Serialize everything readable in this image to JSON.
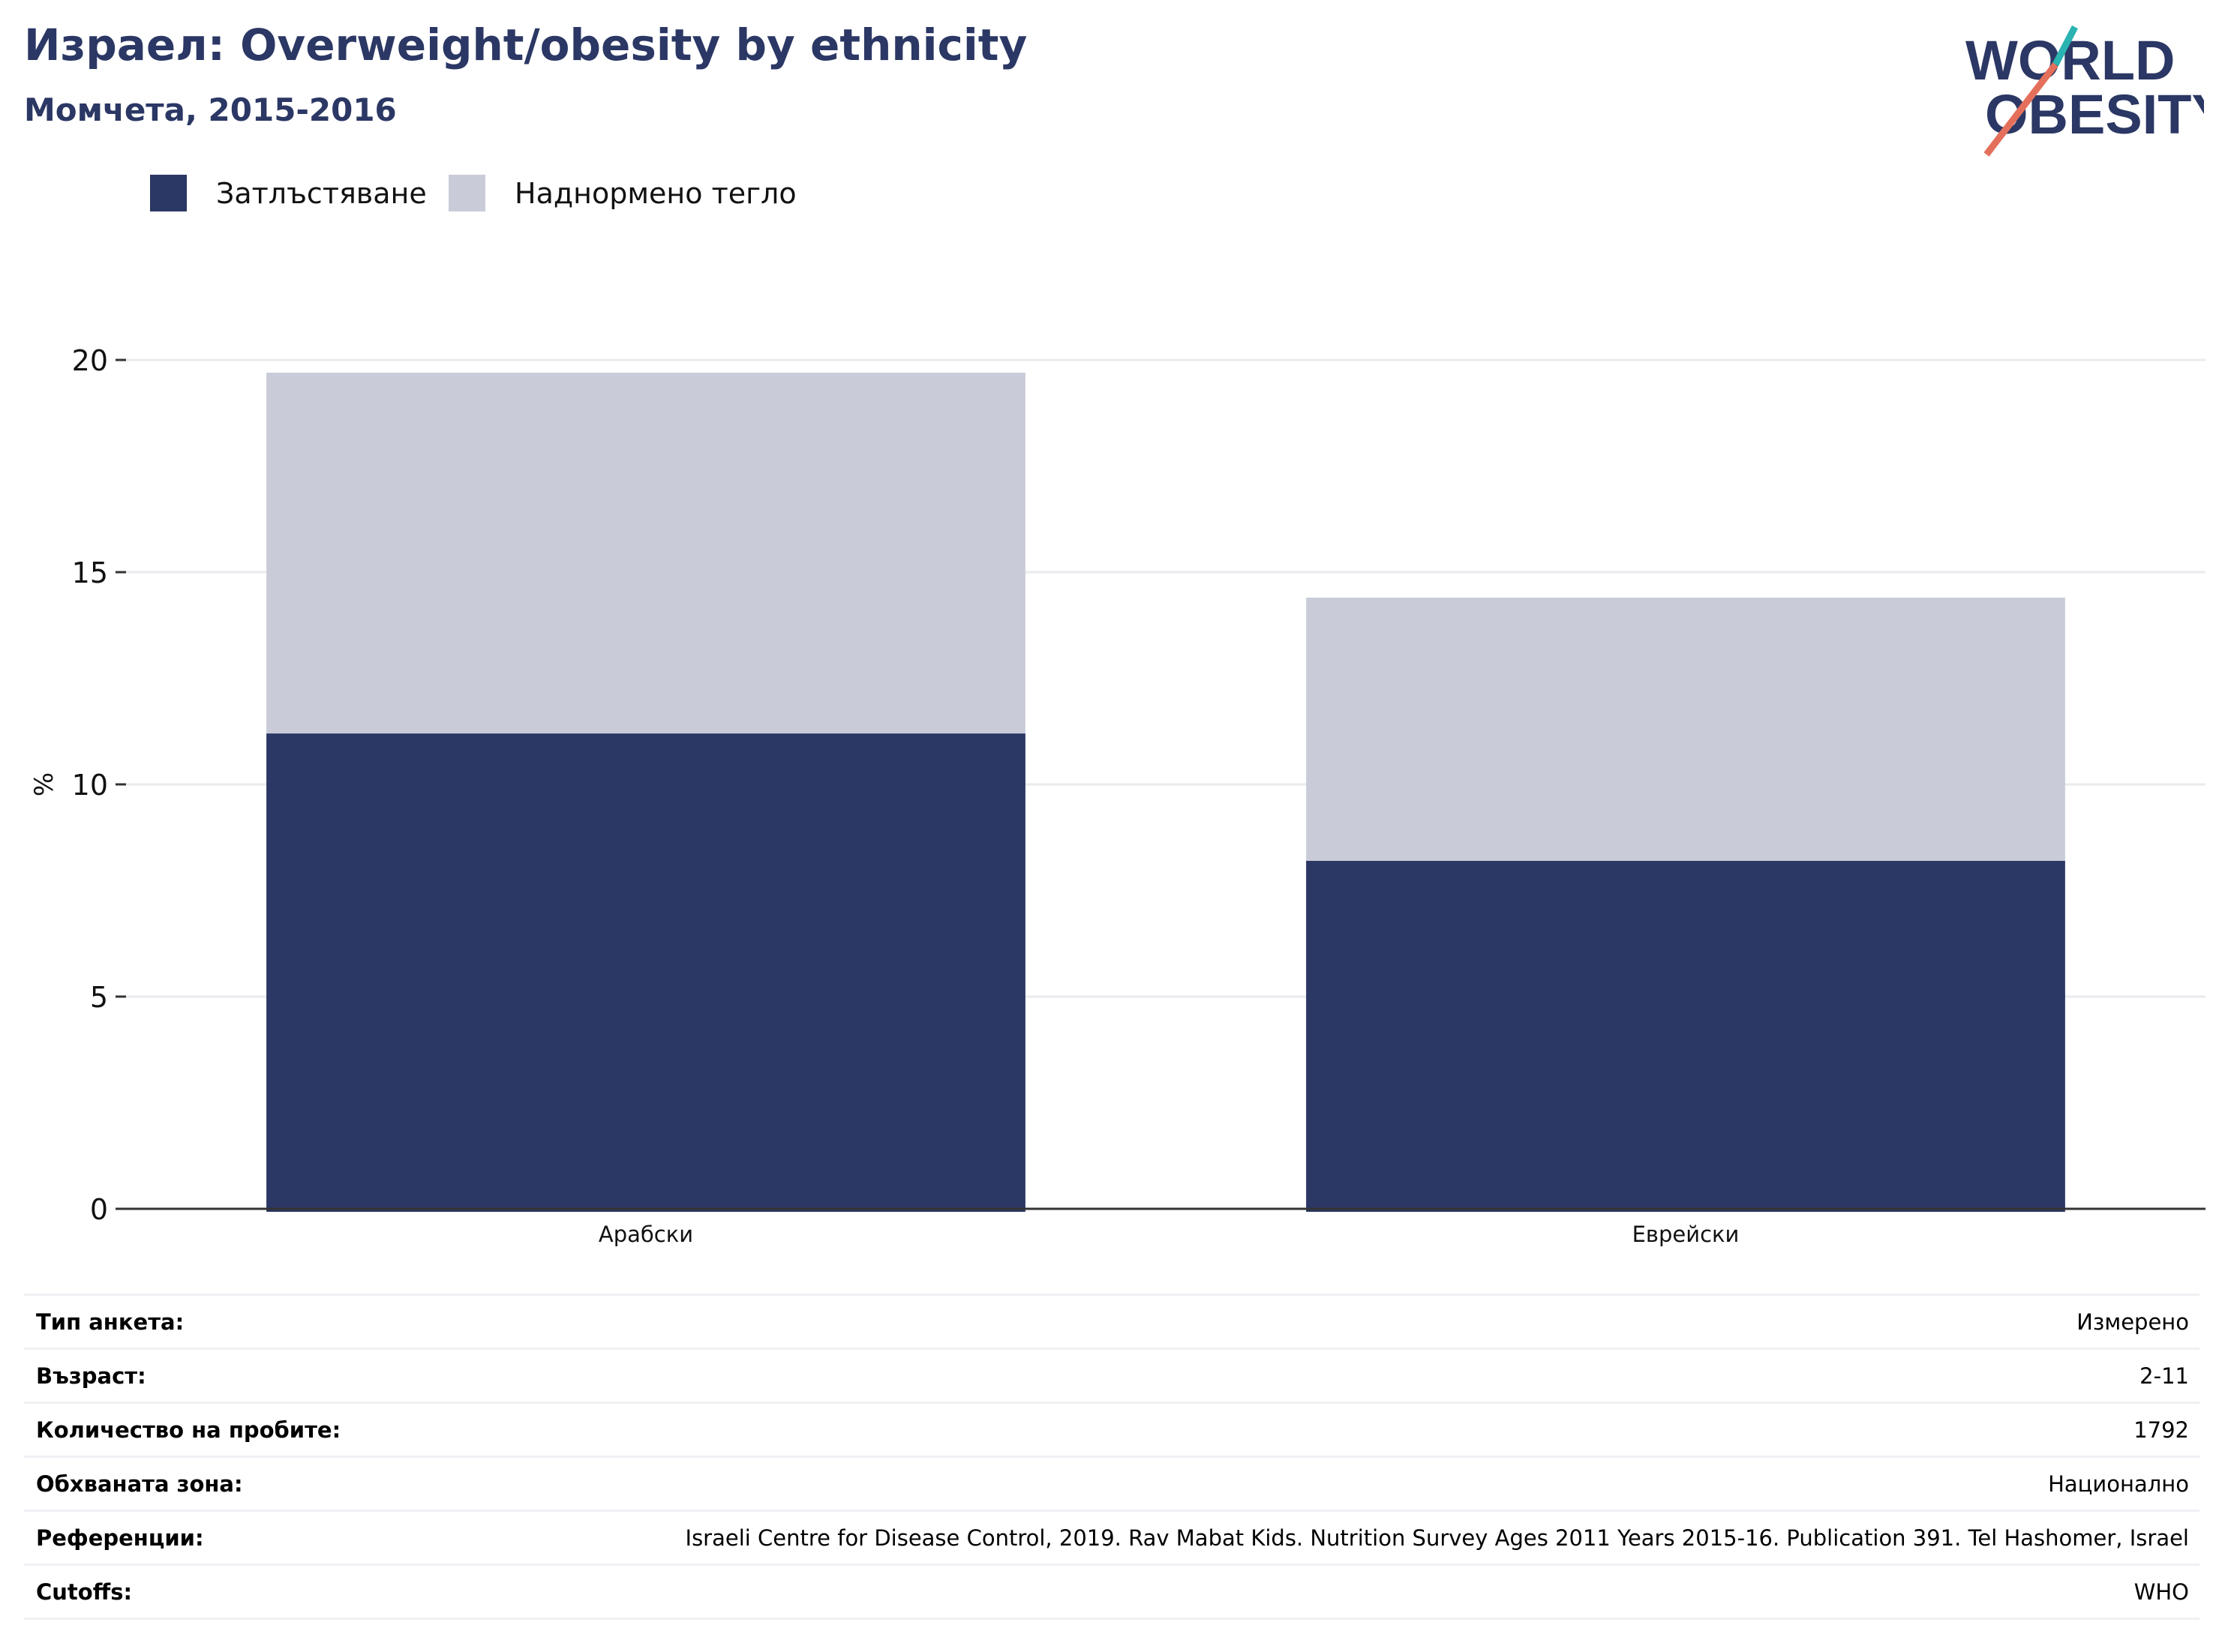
{
  "header": {
    "title": "Израел: Overweight/obesity by ethnicity",
    "subtitle": "Момчета, 2015-2016"
  },
  "logo": {
    "line1": "WORLD",
    "line2": "OBESITY",
    "colors": {
      "text": "#2b3764",
      "slash_top": "#2ab3b1",
      "slash_bottom": "#e4705c"
    }
  },
  "legend": {
    "items": [
      {
        "label": "Затлъстяване",
        "color": "#2b3764"
      },
      {
        "label": "Наднормено тегло",
        "color": "#c9ccd8"
      }
    ]
  },
  "chart_data": {
    "type": "bar",
    "stacked": true,
    "categories": [
      "Арабски",
      "Еврейски"
    ],
    "series": [
      {
        "name": "Затлъстяване",
        "values": [
          11.2,
          8.2
        ],
        "color": "#2b3764"
      },
      {
        "name": "Наднормено тегло",
        "values": [
          8.5,
          6.2
        ],
        "color": "#c9ccd8"
      }
    ],
    "ylabel": "%",
    "ylim": [
      0,
      20
    ],
    "yticks": [
      0,
      5,
      10,
      15,
      20
    ],
    "grid": true,
    "legend_position": "top-left"
  },
  "meta": {
    "rows": [
      {
        "label": "Тип анкета:",
        "value": "Измерено"
      },
      {
        "label": "Възраст:",
        "value": "2-11"
      },
      {
        "label": "Количество на пробите:",
        "value": "1792"
      },
      {
        "label": "Обхваната зона:",
        "value": "Национално"
      },
      {
        "label": "Референции:",
        "value": "Israeli Centre for Disease Control, 2019. Rav Mabat Kids. Nutrition Survey Ages 2011 Years 2015-16. Publication 391. Tel Hashomer, Israel"
      },
      {
        "label": "Cutoffs:",
        "value": "WHO"
      }
    ]
  }
}
